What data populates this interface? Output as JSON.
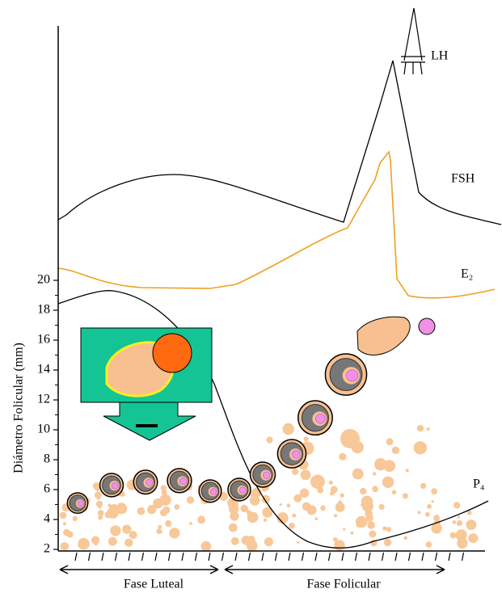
{
  "y_axis": {
    "label": "Diámetro Folicular (mm)",
    "ylim": [
      2,
      20
    ],
    "yticks": [
      2,
      4,
      6,
      8,
      10,
      12,
      14,
      16,
      18,
      20
    ]
  },
  "curve_labels": {
    "lh": "LH",
    "fsh": "FSH",
    "e2": "E₂",
    "p4": "P₄"
  },
  "phases": {
    "luteal": "Fase Luteal",
    "follicular": "Fase Folicular"
  },
  "follicles": [
    {
      "x": 96,
      "diameter": 5.1
    },
    {
      "x": 138,
      "diameter": 6.3
    },
    {
      "x": 180,
      "diameter": 6.5
    },
    {
      "x": 222,
      "diameter": 6.6
    },
    {
      "x": 260,
      "diameter": 5.9
    },
    {
      "x": 296,
      "diameter": 6.0
    },
    {
      "x": 325,
      "diameter": 7.0
    },
    {
      "x": 361,
      "diameter": 8.4
    },
    {
      "x": 390,
      "diameter": 10.8
    },
    {
      "x": 428,
      "diameter": 13.7
    }
  ]
}
